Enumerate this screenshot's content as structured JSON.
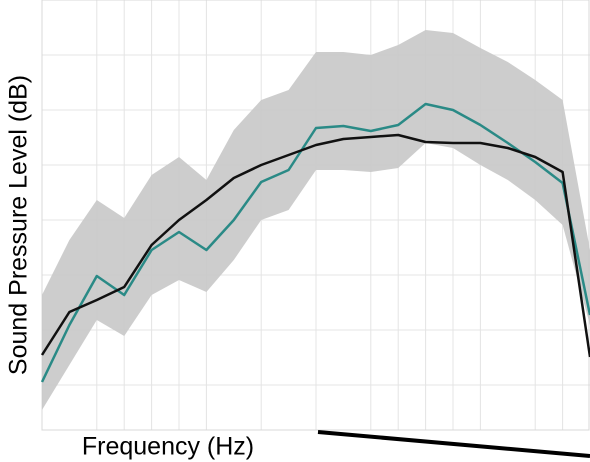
{
  "chart_data": {
    "type": "line",
    "x_label": "Frequency (Hz)",
    "y_label": "Sound Pressure Level (dB)",
    "x": [
      0,
      1,
      2,
      3,
      4,
      5,
      6,
      7,
      8,
      9,
      10,
      11,
      12,
      13,
      14,
      15,
      16,
      17,
      18,
      19,
      20
    ],
    "xlim": [
      0,
      20
    ],
    "ylim": [
      0,
      430
    ],
    "xticks": [
      2,
      3,
      4,
      5,
      6,
      8,
      10,
      12,
      13,
      14,
      15,
      16,
      18,
      19
    ],
    "yticks": [
      45,
      100,
      155,
      210,
      265,
      320,
      375
    ],
    "grid": true,
    "band": {
      "color": "#c8c8c8",
      "upper": [
        135,
        190,
        230,
        212,
        255,
        273,
        250,
        300,
        330,
        340,
        378,
        378,
        375,
        385,
        400,
        397,
        382,
        368,
        350,
        330,
        180
      ],
      "lower": [
        20,
        65,
        110,
        94,
        135,
        150,
        138,
        170,
        210,
        220,
        260,
        260,
        258,
        262,
        287,
        282,
        265,
        250,
        230,
        205,
        105
      ]
    },
    "series": [
      {
        "color": "#2a8a86",
        "values": [
          48,
          105,
          154,
          135,
          180,
          198,
          180,
          210,
          248,
          260,
          302,
          304,
          299,
          305,
          326,
          320,
          305,
          287,
          268,
          247,
          115
        ]
      },
      {
        "color": "#111111",
        "values": [
          75,
          118,
          130,
          143,
          185,
          210,
          230,
          252,
          265,
          275,
          285,
          291,
          293,
          295,
          288,
          287,
          287,
          282,
          273,
          258,
          73
        ]
      }
    ]
  }
}
